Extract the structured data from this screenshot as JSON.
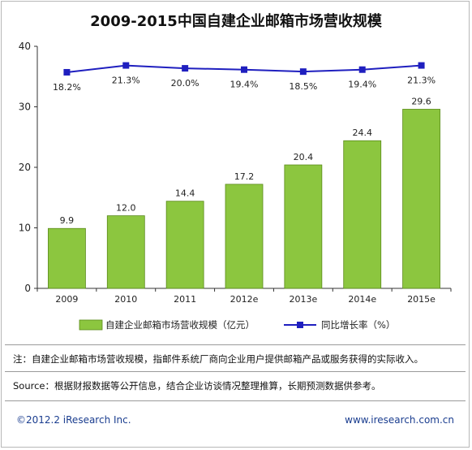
{
  "chart_data": {
    "type": "bar",
    "title": "2009-2015中国自建企业邮箱市场营收规模",
    "categories": [
      "2009",
      "2010",
      "2011",
      "2012e",
      "2013e",
      "2014e",
      "2015e"
    ],
    "series": [
      {
        "name": "自建企业邮箱市场营收规模（亿元）",
        "type": "bar",
        "axis": "left",
        "values": [
          9.9,
          12.0,
          14.4,
          17.2,
          20.4,
          24.4,
          29.6
        ],
        "labels": [
          "9.9",
          "12.0",
          "14.4",
          "17.2",
          "20.4",
          "24.4",
          "29.6"
        ]
      },
      {
        "name": "同比增长率（%）",
        "type": "line",
        "axis": "right",
        "values": [
          18.2,
          21.3,
          20.0,
          19.4,
          18.5,
          19.4,
          21.3
        ],
        "labels": [
          "18.2%",
          "21.3%",
          "20.0%",
          "19.4%",
          "18.5%",
          "19.4%",
          "21.3%"
        ]
      }
    ],
    "ylim": [
      0,
      40
    ],
    "yticks": [
      "0",
      "10",
      "20",
      "30",
      "40"
    ],
    "y2lim": [
      -80,
      30
    ],
    "grid": false,
    "legend": "bottom",
    "colors": {
      "bar": "#8cc63f",
      "bar_edge": "#5a8a1a",
      "line": "#1f1fbf",
      "axis": "#333333"
    }
  },
  "notes": {
    "note": "注：自建企业邮箱市场营收规模，指邮件系统厂商向企业用户提供邮箱产品或服务获得的实际收入。",
    "source": "Source：根据财报数据等公开信息，结合企业访谈情况整理推算，长期预测数据供参考。"
  },
  "footer": {
    "copyright": "©2012.2 iResearch Inc.",
    "website": "www.iresearch.com.cn"
  }
}
